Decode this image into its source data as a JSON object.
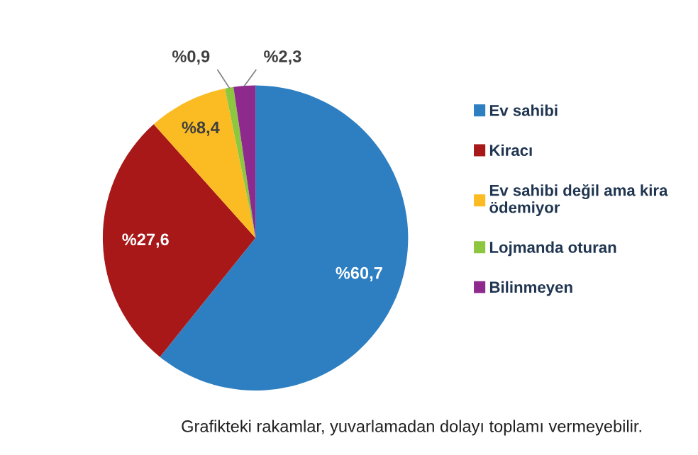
{
  "chart_data": {
    "type": "pie",
    "categories": [
      "Ev sahibi",
      "Kiracı",
      "Ev sahibi değil ama kira\nödemiyor",
      "Lojmanda oturan",
      "Bilinmeyen"
    ],
    "values": [
      60.7,
      27.6,
      8.4,
      0.9,
      2.3
    ],
    "value_labels": [
      "%60,7",
      "%27,6",
      "%8,4",
      "%0,9",
      "%2,3"
    ],
    "colors": [
      "#2e7fc2",
      "#a81818",
      "#fbbb22",
      "#8dc63f",
      "#8e2a8e"
    ],
    "legend": "right",
    "annotations": [
      "Grafikteki rakamlar, yuvarlamadan dolayı toplamı vermeyebilir."
    ]
  }
}
